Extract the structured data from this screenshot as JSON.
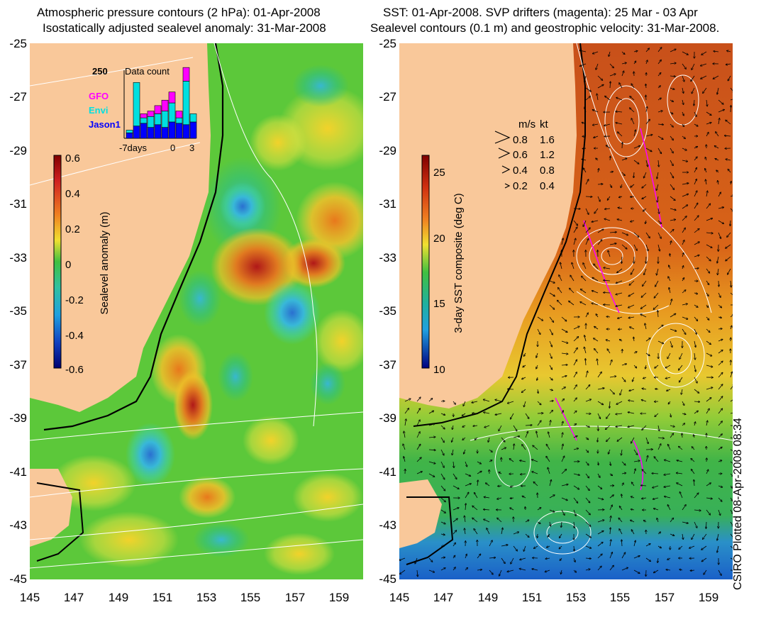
{
  "left_panel": {
    "title_line1": "Atmospheric pressure contours (2 hPa): 01-Apr-2008",
    "title_line2": "Isostatically adjusted sealevel anomaly: 31-Mar-2008",
    "colorbar": {
      "label": "Sealevel anomaly (m)",
      "ticks": [
        "0.6",
        "0.4",
        "0.2",
        "0",
        "-0.2",
        "-0.4",
        "-0.6"
      ]
    },
    "data_count": {
      "title": "Data count",
      "y_max_label": "250",
      "legend": [
        {
          "name": "GFO",
          "color": "#ff00ff"
        },
        {
          "name": "Envi",
          "color": "#00e0e0"
        },
        {
          "name": "Jason1",
          "color": "#0000ff"
        }
      ],
      "x_label_left": "-7days",
      "x_label_zero": "0",
      "x_label_right": "3",
      "bars": [
        {
          "day": -7,
          "jason": 20,
          "envi": 10,
          "gfo": 0
        },
        {
          "day": -6,
          "jason": 45,
          "envi": 160,
          "gfo": 0
        },
        {
          "day": -5,
          "jason": 55,
          "envi": 20,
          "gfo": 15
        },
        {
          "day": -4,
          "jason": 40,
          "envi": 40,
          "gfo": 20
        },
        {
          "day": -3,
          "jason": 50,
          "envi": 40,
          "gfo": 30
        },
        {
          "day": -2,
          "jason": 40,
          "envi": 60,
          "gfo": 40
        },
        {
          "day": -1,
          "jason": 60,
          "envi": 70,
          "gfo": 40
        },
        {
          "day": 0,
          "jason": 55,
          "envi": 20,
          "gfo": 25
        },
        {
          "day": 1,
          "jason": 50,
          "envi": 160,
          "gfo": 50
        },
        {
          "day": 2,
          "jason": 60,
          "envi": 30,
          "gfo": 0
        }
      ]
    }
  },
  "right_panel": {
    "title_line1": "SST: 01-Apr-2008. SVP drifters (magenta): 25 Mar - 03 Apr",
    "title_line2": "Sealevel contours (0.1 m) and geostrophic velocity: 31-Mar-2008.",
    "colorbar": {
      "label": "3-day SST composite (deg C)",
      "ticks": [
        "25",
        "20",
        "15",
        "10"
      ]
    },
    "velocity_legend": {
      "header_ms": "m/s",
      "header_kt": "kt",
      "rows": [
        {
          "ms": "0.8",
          "kt": "1.6"
        },
        {
          "ms": "0.6",
          "kt": "1.2"
        },
        {
          "ms": "0.4",
          "kt": "0.8"
        },
        {
          "ms": "0.2",
          "kt": "0.4"
        }
      ]
    }
  },
  "axes": {
    "lat_labels": [
      "-25",
      "-27",
      "-29",
      "-31",
      "-33",
      "-35",
      "-37",
      "-39",
      "-41",
      "-43",
      "-45"
    ],
    "lon_labels": [
      "145",
      "147",
      "149",
      "151",
      "153",
      "155",
      "157",
      "159"
    ]
  },
  "credit": "CSIRO Plotted 08-Apr-2008 08:34",
  "colors": {
    "land": "#f9c89a",
    "sla_high": "#c0282a",
    "sla_low": "#1020a0",
    "sst_high": "#c84a10",
    "sst_low": "#1a60c8"
  }
}
